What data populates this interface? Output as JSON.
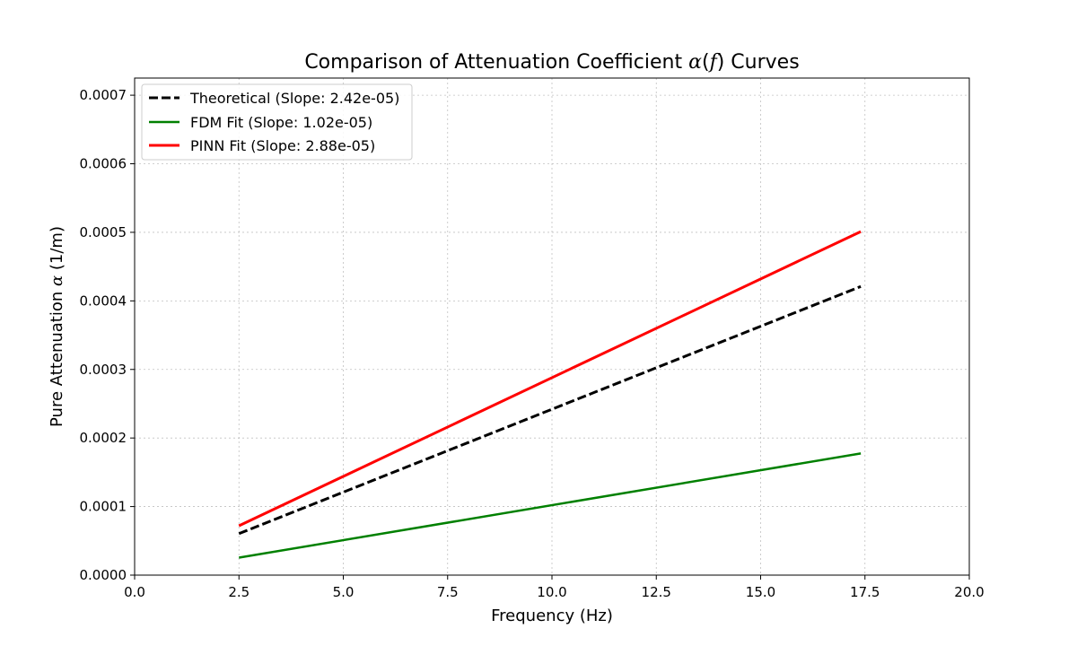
{
  "chart_data": {
    "type": "line",
    "title_prefix": "Comparison of Attenuation Coefficient ",
    "title_symbol": "α",
    "title_open": "(",
    "title_var": "f",
    "title_close": ")",
    "title_suffix": " Curves",
    "xlabel": "Frequency (Hz)",
    "ylabel_prefix": "Pure Attenuation ",
    "ylabel_symbol": "α",
    "ylabel_suffix": " (1/m)",
    "xlim": [
      0,
      20
    ],
    "ylim": [
      0,
      0.000725
    ],
    "xticks": [
      0,
      2.5,
      5,
      7.5,
      10,
      12.5,
      15,
      17.5,
      20
    ],
    "xtick_labels": [
      "0.0",
      "2.5",
      "5.0",
      "7.5",
      "10.0",
      "12.5",
      "15.0",
      "17.5",
      "20.0"
    ],
    "yticks": [
      0,
      0.0001,
      0.0002,
      0.0003,
      0.0004,
      0.0005,
      0.0006,
      0.0007
    ],
    "ytick_labels": [
      "0.0000",
      "0.0001",
      "0.0002",
      "0.0003",
      "0.0004",
      "0.0005",
      "0.0006",
      "0.0007"
    ],
    "grid": true,
    "legend_position": "top-left",
    "series": [
      {
        "name": "Theoretical (Slope: 2.42e-05)",
        "color": "#000000",
        "style": "dashed",
        "x": [
          2.5,
          17.4
        ],
        "y": [
          6.05e-05,
          0.000421
        ]
      },
      {
        "name": "FDM Fit (Slope: 1.02e-05)",
        "color": "#008000",
        "style": "solid",
        "x": [
          2.5,
          17.4
        ],
        "y": [
          2.55e-05,
          0.0001775
        ]
      },
      {
        "name": "PINN Fit (Slope: 2.88e-05)",
        "color": "#ff0000",
        "style": "solid",
        "x": [
          2.5,
          17.4
        ],
        "y": [
          7.2e-05,
          0.0005011
        ]
      }
    ]
  }
}
